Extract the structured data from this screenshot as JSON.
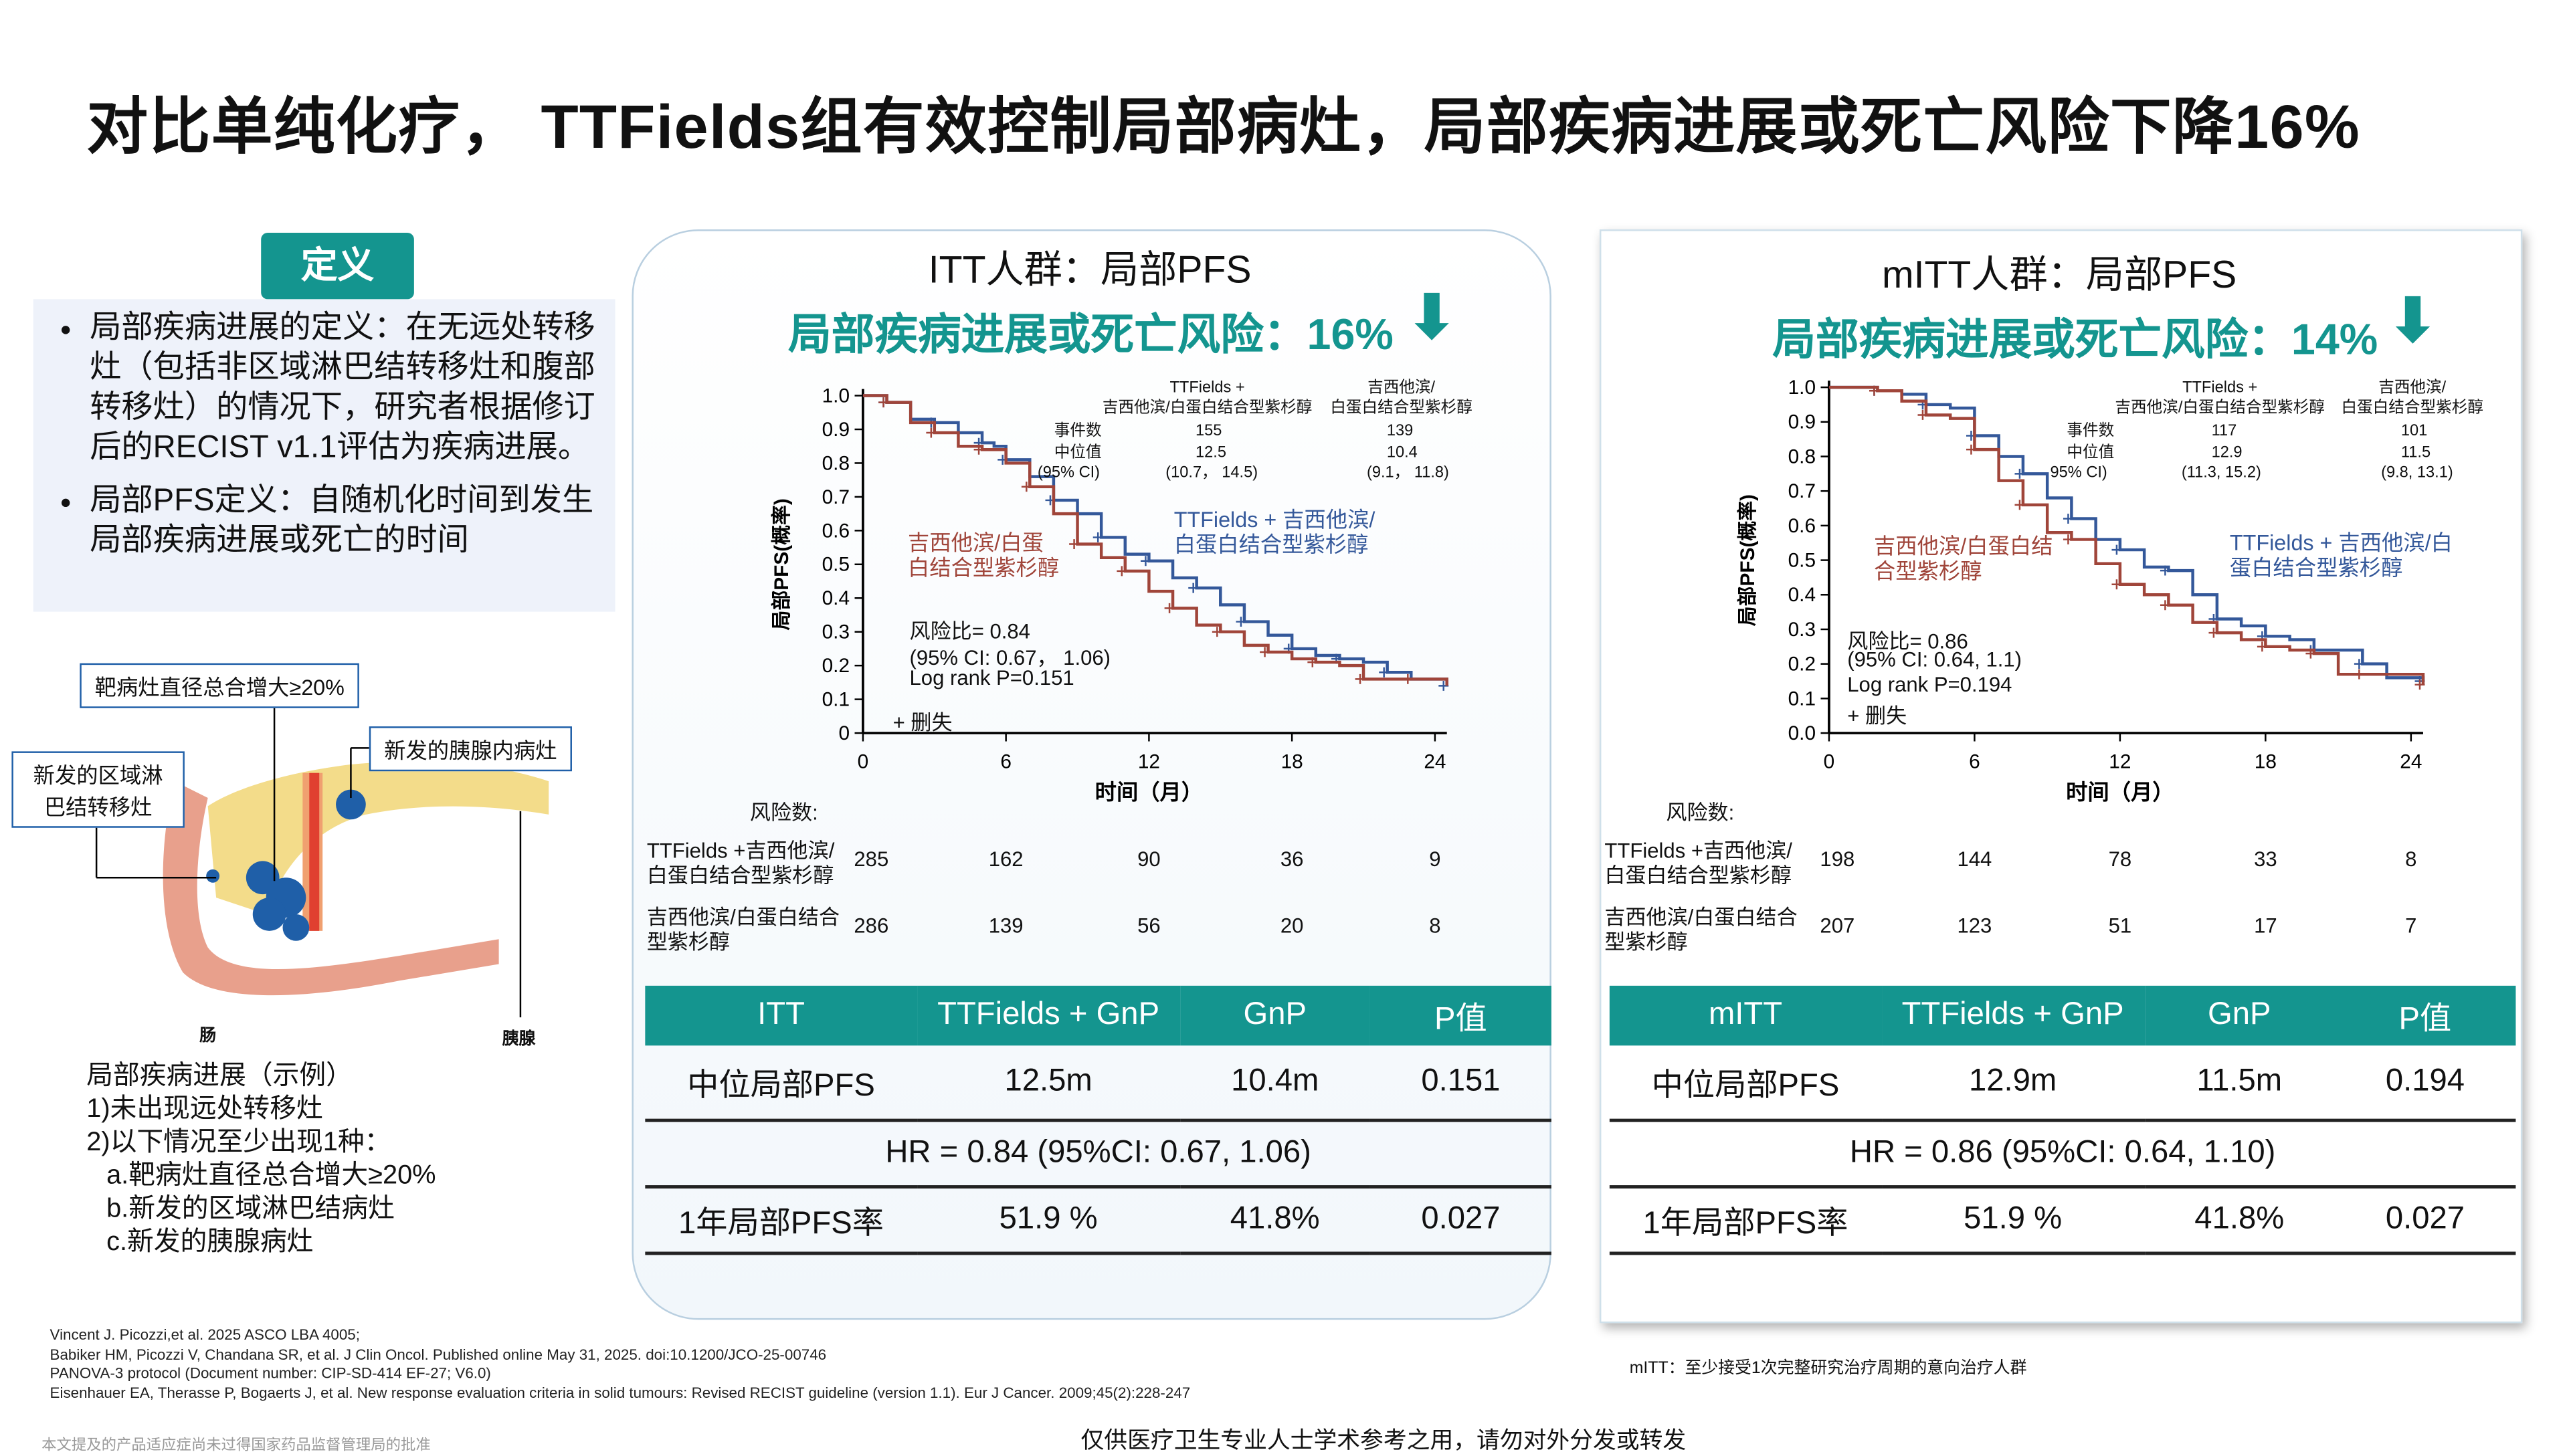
{
  "title": "对比单纯化疗， TTFields组有效控制局部病灶，局部疾病进展或死亡风险下降16%",
  "definition": {
    "label": "定义",
    "bullets": [
      "局部疾病进展的定义：在无远处转移灶（包括非区域淋巴结转移灶和腹部转移灶）的情况下，研究者根据修订后的RECIST v1.1评估为疾病进展。",
      "局部PFS定义：自随机化时间到发生局部疾病进展或死亡的时间"
    ]
  },
  "diagram": {
    "label_target": "靶病灶直径总合增大≥20%",
    "label_lymph": "新发的区域淋巴结转移灶",
    "label_pancreas_new": "新发的胰腺内病灶",
    "label_intestine": "肠",
    "label_pancreas": "胰腺"
  },
  "example": {
    "heading": "局部疾病进展（示例）",
    "lines": [
      "1)未出现远处转移灶",
      "2)以下情况至少出现1种：",
      "a.靶病灶直径总合增大≥20%",
      "b.新发的区域淋巴结病灶",
      "c.新发的胰腺病灶"
    ]
  },
  "colors": {
    "accent": "#14958f",
    "ttf": "#34589a",
    "ctrl": "#a0453a"
  },
  "panels": [
    {
      "title": "ITT人群：局部PFS",
      "subtitle": "局部疾病进展或死亡风险：16%",
      "ylabel": "局部PFS(概率)",
      "xlabel": "时间（月）",
      "legend_head": {
        "ttf": "TTFields +\n吉西他滨/白蛋白结合型紫杉醇",
        "ctrl": "吉西他滨/\n白蛋白结合型紫杉醇"
      },
      "stats": {
        "events_label": "事件数",
        "median_label": "中位值",
        "ci_label": "(95% CI)",
        "ttf_events": "155",
        "ctrl_events": "139",
        "ttf_median": "12.5",
        "ctrl_median": "10.4",
        "ttf_ci": "(10.7， 14.5)",
        "ctrl_ci": "(9.1， 11.8)"
      },
      "ttf_label": "TTFields + 吉西他滨/\n白蛋白结合型紫杉醇",
      "ctrl_label": "吉西他滨/白蛋\n白结合型紫杉醇",
      "hr": "风险比= 0.84",
      "hr_ci": "(95% CI: 0.67， 1.06)",
      "logrank": "Log rank P=0.151",
      "censor": "+ 删失",
      "risk_title": "风险数:",
      "risk_rows": [
        {
          "label": "TTFields +吉西他滨/\n白蛋白结合型紫杉醇",
          "values": [
            "285",
            "162",
            "90",
            "36",
            "9"
          ]
        },
        {
          "label": "吉西他滨/白蛋白结合\n型紫杉醇",
          "values": [
            "286",
            "139",
            "56",
            "20",
            "8"
          ]
        }
      ],
      "table": {
        "headers": [
          "ITT",
          "TTFields + GnP",
          "GnP",
          "P值"
        ],
        "row1": [
          "中位局部PFS",
          "12.5m",
          "10.4m",
          "0.151"
        ],
        "hr_row": "HR = 0.84 (95%CI: 0.67, 1.06)",
        "row3": [
          "1年局部PFS率",
          "51.9 %",
          "41.8%",
          "0.027"
        ]
      }
    },
    {
      "title": "mITT人群：局部PFS",
      "subtitle": "局部疾病进展或死亡风险：14%",
      "ylabel": "局部PFS(概率)",
      "xlabel": "时间（月）",
      "legend_head": {
        "ttf": "TTFields +\n吉西他滨/白蛋白结合型紫杉醇",
        "ctrl": "吉西他滨/\n白蛋白结合型紫杉醇"
      },
      "stats": {
        "events_label": "事件数",
        "median_label": "中位值",
        "ci_label": "95% CI)",
        "ttf_events": "117",
        "ctrl_events": "101",
        "ttf_median": "12.9",
        "ctrl_median": "11.5",
        "ttf_ci": "(11.3, 15.2)",
        "ctrl_ci": "(9.8, 13.1)"
      },
      "ttf_label": "TTFields + 吉西他滨/白\n蛋白结合型紫杉醇",
      "ctrl_label": "吉西他滨/白蛋白结\n合型紫杉醇",
      "hr": "风险比= 0.86",
      "hr_ci": "(95% CI: 0.64, 1.1)",
      "logrank": "Log rank P=0.194",
      "censor": "+ 删失",
      "risk_title": "风险数:",
      "risk_rows": [
        {
          "label": "TTFields +吉西他滨/\n白蛋白结合型紫杉醇",
          "values": [
            "198",
            "144",
            "78",
            "33",
            "8"
          ]
        },
        {
          "label": "吉西他滨/白蛋白结合\n型紫杉醇",
          "values": [
            "207",
            "123",
            "51",
            "17",
            "7"
          ]
        }
      ],
      "table": {
        "headers": [
          "mITT",
          "TTFields + GnP",
          "GnP",
          "P值"
        ],
        "row1": [
          "中位局部PFS",
          "12.9m",
          "11.5m",
          "0.194"
        ],
        "hr_row": "HR = 0.86 (95%CI: 0.64, 1.10)",
        "row3": [
          "1年局部PFS率",
          "51.9 %",
          "41.8%",
          "0.027"
        ]
      }
    }
  ],
  "chart_data": [
    {
      "type": "line",
      "title": "ITT人群：局部PFS",
      "xlabel": "时间（月）",
      "ylabel": "局部PFS(概率)",
      "xlim": [
        0,
        24
      ],
      "ylim": [
        0,
        1
      ],
      "xticks": [
        "0",
        "6",
        "12",
        "18",
        "24"
      ],
      "yticks": [
        "0",
        "0.1",
        "0.2",
        "0.3",
        "0.4",
        "0.5",
        "0.6",
        "0.7",
        "0.8",
        "0.9",
        "1.0"
      ],
      "series": [
        {
          "name": "TTFields + 吉西他滨/白蛋白结合型紫杉醇",
          "x": [
            0,
            1,
            2,
            3,
            4,
            5,
            5.5,
            6,
            7,
            8,
            9,
            10,
            11,
            12,
            13,
            14,
            15,
            16,
            17,
            18,
            19,
            20,
            21,
            22,
            23,
            24.5
          ],
          "y": [
            1,
            0.98,
            0.93,
            0.92,
            0.89,
            0.86,
            0.85,
            0.81,
            0.76,
            0.69,
            0.65,
            0.58,
            0.53,
            0.51,
            0.46,
            0.43,
            0.38,
            0.33,
            0.29,
            0.25,
            0.23,
            0.22,
            0.21,
            0.18,
            0.16,
            0.14
          ]
        },
        {
          "name": "吉西他滨/白蛋白结合型紫杉醇",
          "x": [
            0,
            1,
            2,
            3,
            4,
            5,
            6,
            7,
            8,
            9,
            10,
            11,
            12,
            13,
            14,
            15,
            16,
            17,
            18,
            19,
            20,
            21,
            22,
            23,
            24.5
          ],
          "y": [
            1,
            0.98,
            0.92,
            0.89,
            0.85,
            0.84,
            0.8,
            0.73,
            0.65,
            0.56,
            0.52,
            0.48,
            0.42,
            0.37,
            0.32,
            0.3,
            0.26,
            0.24,
            0.22,
            0.21,
            0.2,
            0.16,
            0.16,
            0.16,
            0.14
          ]
        }
      ]
    },
    {
      "type": "line",
      "title": "mITT人群：局部PFS",
      "xlabel": "时间（月）",
      "ylabel": "局部PFS(概率)",
      "xlim": [
        0,
        24
      ],
      "ylim": [
        0,
        1
      ],
      "xticks": [
        "0",
        "6",
        "12",
        "18",
        "24"
      ],
      "yticks": [
        "0.0",
        "0.1",
        "0.2",
        "0.3",
        "0.4",
        "0.5",
        "0.6",
        "0.7",
        "0.8",
        "0.9",
        "1.0"
      ],
      "series": [
        {
          "name": "TTFields + 吉西他滨/白蛋白结合型紫杉醇",
          "x": [
            0,
            2,
            3,
            4,
            5,
            6,
            7,
            8,
            9,
            10,
            11,
            12,
            13,
            14,
            15,
            16,
            17,
            18,
            19,
            20,
            21,
            22,
            23,
            24.5
          ],
          "y": [
            1,
            0.99,
            0.98,
            0.95,
            0.94,
            0.86,
            0.8,
            0.75,
            0.68,
            0.62,
            0.56,
            0.53,
            0.48,
            0.47,
            0.4,
            0.33,
            0.31,
            0.28,
            0.27,
            0.24,
            0.24,
            0.2,
            0.16,
            0.15
          ]
        },
        {
          "name": "吉西他滨/白蛋白结合型紫杉醇",
          "x": [
            0,
            2,
            3,
            4,
            5,
            6,
            7,
            8,
            9,
            10,
            11,
            12,
            13,
            14,
            15,
            16,
            17,
            18,
            19,
            20,
            21,
            22,
            23,
            24.5
          ],
          "y": [
            1,
            0.99,
            0.96,
            0.92,
            0.91,
            0.82,
            0.73,
            0.66,
            0.58,
            0.56,
            0.49,
            0.43,
            0.4,
            0.37,
            0.32,
            0.29,
            0.27,
            0.25,
            0.24,
            0.23,
            0.17,
            0.17,
            0.17,
            0.14
          ]
        }
      ]
    }
  ],
  "footnote_mitt": "mITT：至少接受1次完整研究治疗周期的意向治疗人群",
  "references": [
    "Vincent J. Picozzi,et al. 2025 ASCO LBA 4005;",
    "Babiker HM, Picozzi V, Chandana SR, et al. J Clin Oncol. Published online May 31, 2025. doi:10.1200/JCO-25-00746",
    "PANOVA-3 protocol (Document number: CIP-SD-414 EF-27; V6.0)",
    "Eisenhauer EA, Therasse P, Bogaerts J, et al. New response evaluation criteria in solid tumours: Revised RECIST guideline (version 1.1). Eur J Cancer. 2009;45(2):228-247"
  ],
  "disclaimer_left": "本文提及的产品适应症尚未过得国家药品监督管理局的批准",
  "disclaimer_center": "仅供医疗卫生专业人士学术参考之用，请勿对外分发或转发"
}
